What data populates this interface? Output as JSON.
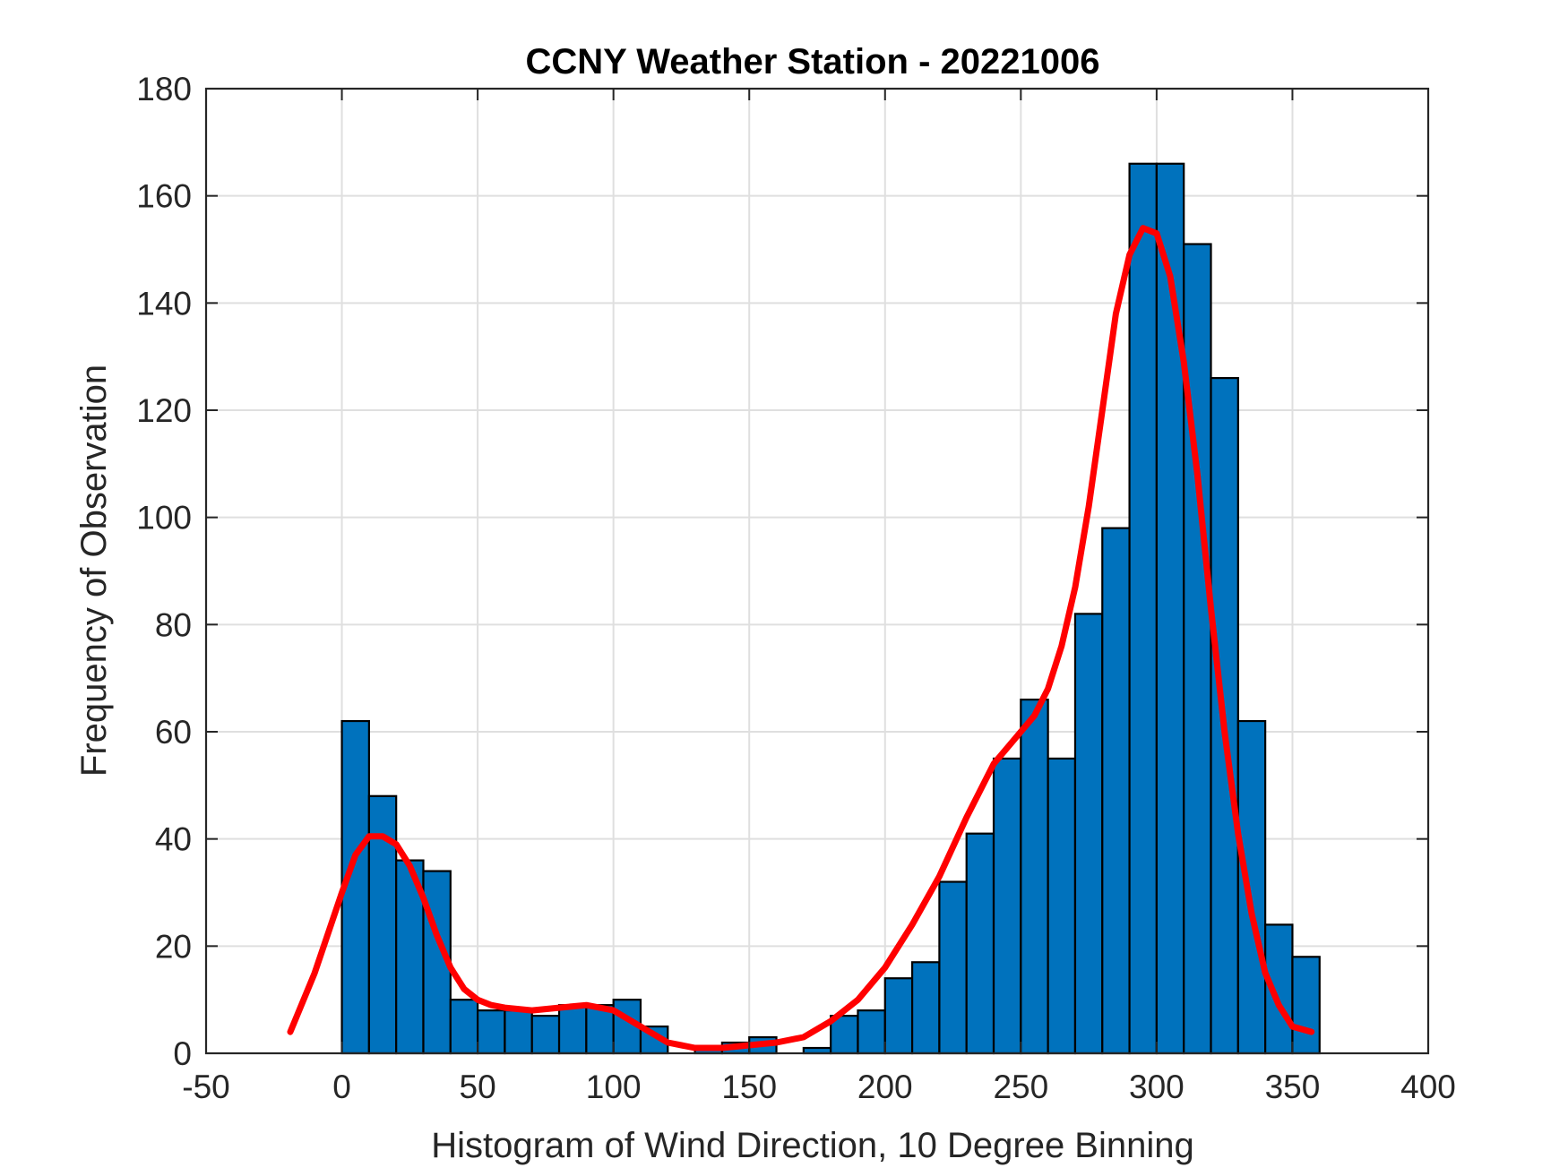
{
  "chart_data": {
    "type": "bar",
    "title": "CCNY Weather Station - 20221006",
    "xlabel": "Histogram of Wind Direction, 10 Degree Binning",
    "ylabel": "Frequency of Observation",
    "xlim": [
      -50,
      400
    ],
    "ylim": [
      0,
      180
    ],
    "xticks": [
      -50,
      0,
      50,
      100,
      150,
      200,
      250,
      300,
      350,
      400
    ],
    "yticks": [
      0,
      20,
      40,
      60,
      80,
      100,
      120,
      140,
      160,
      180
    ],
    "grid": true,
    "bin_width": 10,
    "bins": [
      {
        "start": 0,
        "count": 62
      },
      {
        "start": 10,
        "count": 48
      },
      {
        "start": 20,
        "count": 36
      },
      {
        "start": 30,
        "count": 34
      },
      {
        "start": 40,
        "count": 10
      },
      {
        "start": 50,
        "count": 8
      },
      {
        "start": 60,
        "count": 8
      },
      {
        "start": 70,
        "count": 7
      },
      {
        "start": 80,
        "count": 9
      },
      {
        "start": 90,
        "count": 9
      },
      {
        "start": 100,
        "count": 10
      },
      {
        "start": 110,
        "count": 5
      },
      {
        "start": 120,
        "count": 0
      },
      {
        "start": 130,
        "count": 1
      },
      {
        "start": 140,
        "count": 2
      },
      {
        "start": 150,
        "count": 3
      },
      {
        "start": 160,
        "count": 0
      },
      {
        "start": 170,
        "count": 1
      },
      {
        "start": 180,
        "count": 7
      },
      {
        "start": 190,
        "count": 8
      },
      {
        "start": 200,
        "count": 14
      },
      {
        "start": 210,
        "count": 17
      },
      {
        "start": 220,
        "count": 32
      },
      {
        "start": 230,
        "count": 41
      },
      {
        "start": 240,
        "count": 55
      },
      {
        "start": 250,
        "count": 66
      },
      {
        "start": 260,
        "count": 55
      },
      {
        "start": 270,
        "count": 82
      },
      {
        "start": 280,
        "count": 98
      },
      {
        "start": 290,
        "count": 166
      },
      {
        "start": 300,
        "count": 166
      },
      {
        "start": 310,
        "count": 151
      },
      {
        "start": 320,
        "count": 126
      },
      {
        "start": 330,
        "count": 62
      },
      {
        "start": 340,
        "count": 24
      },
      {
        "start": 350,
        "count": 18
      }
    ],
    "fit_curve": {
      "x": [
        -19,
        -10,
        0,
        5,
        10,
        15,
        20,
        25,
        30,
        35,
        40,
        45,
        50,
        55,
        60,
        70,
        80,
        90,
        100,
        110,
        120,
        130,
        140,
        150,
        160,
        170,
        180,
        190,
        200,
        210,
        220,
        230,
        240,
        250,
        255,
        260,
        265,
        270,
        275,
        280,
        285,
        290,
        295,
        300,
        305,
        310,
        315,
        320,
        325,
        330,
        335,
        340,
        345,
        350,
        357
      ],
      "y": [
        4,
        15,
        30,
        37,
        40.5,
        40.5,
        39,
        35,
        29,
        22,
        16,
        12,
        10,
        9,
        8.5,
        8,
        8.5,
        9,
        8,
        5,
        2,
        1,
        1,
        1.5,
        2,
        3,
        6,
        10,
        16,
        24,
        33,
        44,
        54,
        60,
        63,
        68,
        76,
        87,
        102,
        120,
        138,
        149,
        154,
        153,
        145,
        129,
        108,
        83,
        60,
        41,
        26,
        15,
        9,
        5,
        4
      ]
    },
    "bar_color": "#0072BD",
    "bar_edge_color": "#000000",
    "curve_color": "#FF0000"
  }
}
